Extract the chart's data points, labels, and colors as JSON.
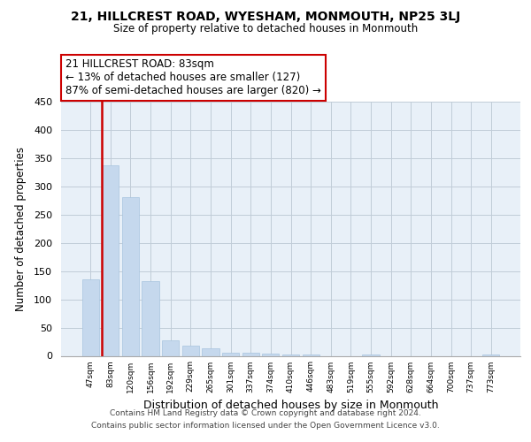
{
  "title": "21, HILLCREST ROAD, WYESHAM, MONMOUTH, NP25 3LJ",
  "subtitle": "Size of property relative to detached houses in Monmouth",
  "xlabel": "Distribution of detached houses by size in Monmouth",
  "ylabel": "Number of detached properties",
  "bar_labels": [
    "47sqm",
    "83sqm",
    "120sqm",
    "156sqm",
    "192sqm",
    "229sqm",
    "265sqm",
    "301sqm",
    "337sqm",
    "374sqm",
    "410sqm",
    "446sqm",
    "483sqm",
    "519sqm",
    "555sqm",
    "592sqm",
    "628sqm",
    "664sqm",
    "700sqm",
    "737sqm",
    "773sqm"
  ],
  "bar_values": [
    135,
    338,
    281,
    133,
    27,
    18,
    13,
    6,
    5,
    4,
    3,
    2,
    0,
    0,
    3,
    0,
    0,
    0,
    0,
    0,
    3
  ],
  "red_line_bar_index": 1,
  "bar_color": "#c5d8ed",
  "bar_edge_color": "#a8c4de",
  "red_line_color": "#cc0000",
  "annotation_title": "21 HILLCREST ROAD: 83sqm",
  "annotation_line1": "← 13% of detached houses are smaller (127)",
  "annotation_line2": "87% of semi-detached houses are larger (820) →",
  "annotation_box_facecolor": "#ffffff",
  "annotation_border_color": "#cc0000",
  "footer_line1": "Contains HM Land Registry data © Crown copyright and database right 2024.",
  "footer_line2": "Contains public sector information licensed under the Open Government Licence v3.0.",
  "ylim": [
    0,
    450
  ],
  "yticks": [
    0,
    50,
    100,
    150,
    200,
    250,
    300,
    350,
    400,
    450
  ],
  "plot_bg_color": "#e8f0f8",
  "fig_bg_color": "#ffffff",
  "grid_color": "#c0ccd8"
}
